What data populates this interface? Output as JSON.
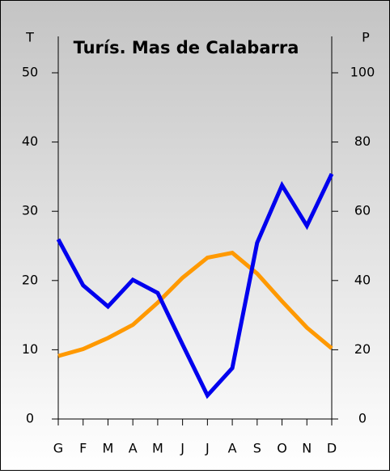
{
  "chart_data": {
    "type": "line",
    "title": "Turís. Mas de Calabarra",
    "ylabel": "T",
    "y2label": "P",
    "categories": [
      "G",
      "F",
      "M",
      "A",
      "M",
      "J",
      "J",
      "A",
      "S",
      "O",
      "N",
      "D"
    ],
    "series": [
      {
        "color": "#ff9900",
        "values": [
          9.1,
          10.1,
          11.7,
          13.6,
          16.8,
          20.4,
          23.3,
          24.0,
          21.0,
          17.0,
          13.2,
          10.2
        ]
      },
      {
        "color": "#0000ee",
        "axis": "y2",
        "values": [
          51.9,
          38.6,
          32.5,
          40.2,
          36.4,
          21.5,
          6.8,
          14.7,
          50.9,
          67.5,
          55.8,
          70.8
        ]
      }
    ],
    "ylim": [
      0,
      50
    ],
    "yticks": [
      0,
      10,
      20,
      30,
      40,
      50
    ],
    "y2lim": [
      0,
      100
    ],
    "y2ticks": [
      0,
      20,
      40,
      60,
      80,
      100
    ]
  }
}
